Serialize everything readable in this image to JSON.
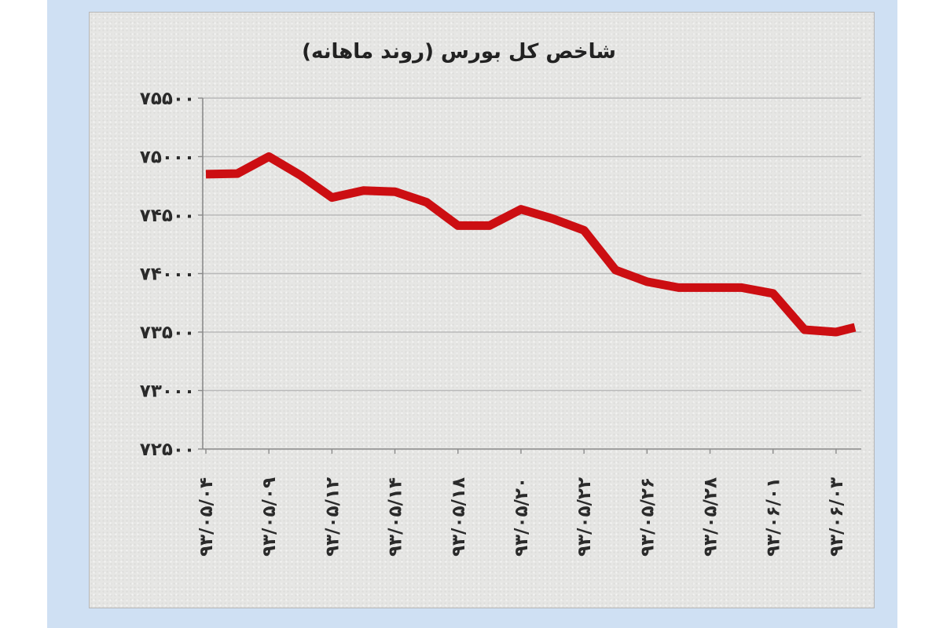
{
  "chart_data": {
    "type": "line",
    "title": "شاخص کل بورس (روند ماهانه)",
    "xlabel": "",
    "ylabel": "",
    "ylim": [
      72500,
      75500
    ],
    "yticks": [
      72500,
      73000,
      73500,
      74000,
      74500,
      75000,
      75500
    ],
    "ytick_labels": [
      "۷۲۵۰۰",
      "۷۳۰۰۰",
      "۷۳۵۰۰",
      "۷۴۰۰۰",
      "۷۴۵۰۰",
      "۷۵۰۰۰",
      "۷۵۵۰۰"
    ],
    "categories": [
      "۹۳/۰۵/۰۴",
      "۹۳/۰۵/۰۹",
      "۹۳/۰۵/۱۲",
      "۹۳/۰۵/۱۴",
      "۹۳/۰۵/۱۸",
      "۹۳/۰۵/۲۰",
      "۹۳/۰۵/۲۲",
      "۹۳/۰۵/۲۶",
      "۹۳/۰۵/۲۸",
      "۹۳/۰۶/۰۱",
      "۹۳/۰۶/۰۳"
    ],
    "x": [
      0,
      0.5,
      1,
      1.5,
      2,
      2.5,
      3,
      3.5,
      4,
      4.5,
      5,
      5.5,
      6,
      6.5,
      7,
      7.5,
      8,
      8.5,
      9,
      9.5,
      10,
      10.3
    ],
    "series": [
      {
        "values": [
          74850,
          74855,
          75000,
          74840,
          74650,
          74710,
          74700,
          74610,
          74410,
          74410,
          74550,
          74470,
          74370,
          74030,
          73930,
          73880,
          73880,
          73880,
          73830,
          73520,
          73500,
          73540
        ]
      }
    ],
    "grid": true,
    "colors": {
      "line": "#cc0e12",
      "grid": "#b9b9b9",
      "axis": "#8a8a8a"
    }
  }
}
